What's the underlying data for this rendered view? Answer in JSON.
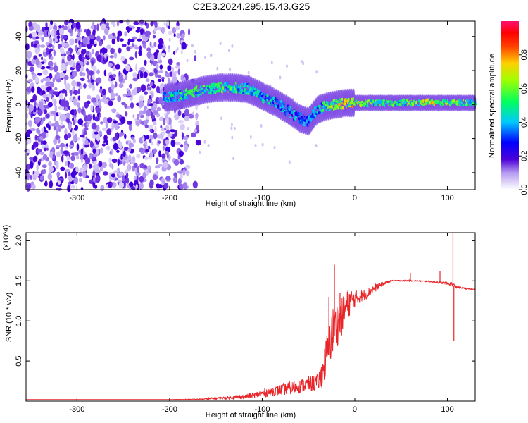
{
  "title": "C2E3.2024.295.15.43.G25",
  "colors": {
    "snr_line": "#e8262a",
    "axis": "#000000",
    "background": "#ffffff"
  },
  "chart_data": [
    {
      "type": "heatmap",
      "xlabel": "Height of straight line (km)",
      "ylabel": "Frequency (Hz)",
      "xlim": [
        -355,
        130
      ],
      "ylim": [
        -50,
        49
      ],
      "xticks": [
        -300,
        -200,
        -100,
        0,
        100
      ],
      "xtick_labels": [
        "-300",
        "-200",
        "-100",
        "0",
        "100"
      ],
      "yticks": [
        -40,
        -20,
        0,
        20,
        40
      ],
      "ytick_labels": [
        "-40",
        "-20",
        "0",
        "20",
        "40"
      ],
      "colorbar": {
        "label": "Normalized spectral amplitude",
        "range": [
          0,
          1
        ],
        "ticks": [
          0,
          0.2,
          0.4,
          0.6,
          0.8
        ],
        "tick_labels": [
          "0.0",
          "0.2",
          "0.4",
          "0.6",
          "0.8"
        ],
        "colormap": "rainbow (white-purple-blue-cyan-green-yellow-red-magenta)"
      },
      "ridge": {
        "x": [
          -205,
          -190,
          -175,
          -160,
          -145,
          -130,
          -115,
          -100,
          -85,
          -70,
          -60,
          -50,
          -40,
          -30,
          -20,
          -10,
          0,
          20,
          50,
          80,
          110,
          130
        ],
        "y": [
          4,
          5,
          7,
          9,
          10,
          10,
          9,
          5,
          1,
          -4,
          -8,
          -10,
          -3,
          -1,
          0,
          1,
          1,
          1,
          1,
          1,
          1,
          1
        ],
        "amp": [
          0.5,
          0.5,
          0.55,
          0.55,
          0.6,
          0.55,
          0.5,
          0.5,
          0.45,
          0.45,
          0.4,
          0.4,
          0.45,
          0.6,
          0.7,
          0.75,
          0.75,
          0.6,
          0.6,
          0.75,
          0.6,
          0.65
        ]
      },
      "noise_region_x": [
        -355,
        -200
      ]
    },
    {
      "type": "line",
      "xlabel": "Height of straight line (km)",
      "ylabel": "SNR (10 * v/v)",
      "y_multiplier": "(x10^4)",
      "xlim": [
        -355,
        130
      ],
      "ylim": [
        0,
        2.1
      ],
      "xticks": [
        -300,
        -200,
        -100,
        0,
        100
      ],
      "xtick_labels": [
        "-300",
        "-200",
        "-100",
        "0",
        "100"
      ],
      "yticks": [
        0.5,
        1.0,
        1.5,
        2.0
      ],
      "ytick_labels": [
        "0.5",
        "1.0",
        "1.5",
        "2.0"
      ],
      "series": [
        {
          "x": [
            -355,
            -300,
            -250,
            -200,
            -170,
            -150,
            -130,
            -110,
            -100,
            -90,
            -80,
            -70,
            -60,
            -50,
            -40,
            -35,
            -30,
            -25,
            -20,
            -15,
            -10,
            -5,
            0,
            10,
            20,
            30,
            40,
            60,
            80,
            95,
            100,
            105,
            110,
            120,
            130
          ],
          "y": [
            0.02,
            0.02,
            0.02,
            0.02,
            0.02,
            0.03,
            0.04,
            0.06,
            0.08,
            0.1,
            0.12,
            0.14,
            0.16,
            0.18,
            0.2,
            0.3,
            0.5,
            0.75,
            0.85,
            0.95,
            1.1,
            1.2,
            1.25,
            1.3,
            1.38,
            1.45,
            1.5,
            1.5,
            1.49,
            1.47,
            1.46,
            1.45,
            1.42,
            1.4,
            1.39
          ],
          "noise": [
            0,
            0,
            0,
            0,
            0.01,
            0.02,
            0.03,
            0.05,
            0.07,
            0.08,
            0.1,
            0.12,
            0.12,
            0.14,
            0.15,
            0.25,
            0.4,
            0.45,
            0.4,
            0.35,
            0.3,
            0.25,
            0.15,
            0.1,
            0.08,
            0.04,
            0.01,
            0.01,
            0.01,
            0.02,
            0.03,
            0.04,
            0.02,
            0.01,
            0.01
          ],
          "spikes": [
            [
              -22,
              1.7
            ],
            [
              -28,
              1.3
            ],
            [
              -16,
              1.35
            ],
            [
              106,
              2.1
            ],
            [
              107,
              0.75
            ],
            [
              92,
              1.62
            ],
            [
              60,
              1.6
            ]
          ]
        }
      ]
    }
  ]
}
